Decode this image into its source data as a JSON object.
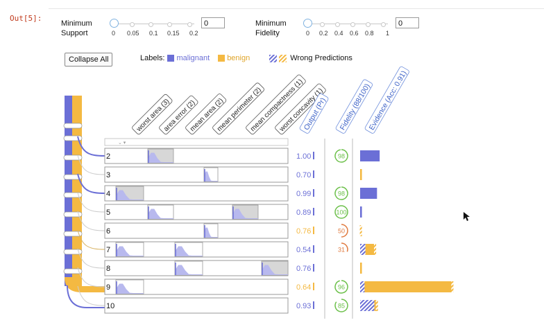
{
  "cell": {
    "out_label": "Out[5]:"
  },
  "filters": {
    "support": {
      "label_line1": "Minimum",
      "label_line2": "Support",
      "value": "0",
      "ticks": [
        "0",
        "0.05",
        "0.1",
        "0.15",
        "0.2"
      ]
    },
    "fidelity": {
      "label_line1": "Minimum",
      "label_line2": "Fidelity",
      "value": "0",
      "ticks": [
        "0",
        "0.2",
        "0.4",
        "0.6",
        "0.8",
        "1"
      ]
    }
  },
  "toolbar": {
    "collapse_label": "Collapse All"
  },
  "legend": {
    "labels_prefix": "Labels:",
    "malignant": "malignant",
    "benign": "benign",
    "wrong": "Wrong Predictions"
  },
  "colors": {
    "malignant": "#6b6fd6",
    "benign": "#f4b942",
    "fidelity_good": "#6cc04a",
    "fidelity_bad": "#e07a3f",
    "hist_fill": "#b8b9ee"
  },
  "columns": {
    "features": [
      "worst area (3)",
      "area error (2)",
      "mean area (2)",
      "mean perimeter (2)",
      "mean compactness (1)",
      "worst concavity (1)"
    ],
    "output": "Output (Pr)",
    "fidelity": "Fidelity (88/100)",
    "evidence": "Evidence (Acc: 0.91)"
  },
  "rules": [
    {
      "id": "2",
      "output": "1.00",
      "label": "malignant",
      "fidelity": "98",
      "fid_frac": 0.98,
      "evidence": {
        "malignant": 0.22,
        "benign": 0,
        "wrong": false
      }
    },
    {
      "id": "3",
      "output": "0.70",
      "label": "malignant",
      "fidelity": "",
      "fid_frac": 0,
      "evidence": {
        "malignant": 0,
        "benign": 0.02,
        "wrong": false
      }
    },
    {
      "id": "4",
      "output": "0.99",
      "label": "malignant",
      "fidelity": "98",
      "fid_frac": 0.98,
      "evidence": {
        "malignant": 0.19,
        "benign": 0,
        "wrong": false
      }
    },
    {
      "id": "5",
      "output": "0.89",
      "label": "malignant",
      "fidelity": "100",
      "fid_frac": 1.0,
      "evidence": {
        "malignant": 0.02,
        "benign": 0,
        "wrong": false
      }
    },
    {
      "id": "6",
      "output": "0.76",
      "label": "benign",
      "fidelity": "50",
      "fid_frac": 0.5,
      "evidence": {
        "malignant": 0,
        "benign": 0.02,
        "wrong": true
      }
    },
    {
      "id": "7",
      "output": "0.54",
      "label": "malignant",
      "fidelity": "31",
      "fid_frac": 0.31,
      "evidence": {
        "malignant": 0.06,
        "benign": 0.12,
        "wrong": true
      }
    },
    {
      "id": "8",
      "output": "0.76",
      "label": "malignant",
      "fidelity": "",
      "fid_frac": 0,
      "evidence": {
        "malignant": 0,
        "benign": 0.02,
        "wrong": false
      }
    },
    {
      "id": "9",
      "output": "0.64",
      "label": "benign",
      "fidelity": "96",
      "fid_frac": 0.96,
      "evidence": {
        "malignant": 0.05,
        "benign": 1.0,
        "wrong": true
      }
    },
    {
      "id": "10",
      "output": "0.93",
      "label": "malignant",
      "fidelity": "85",
      "fid_frac": 0.85,
      "evidence": {
        "malignant": 0.16,
        "benign": 0.04,
        "wrong": true
      }
    }
  ]
}
